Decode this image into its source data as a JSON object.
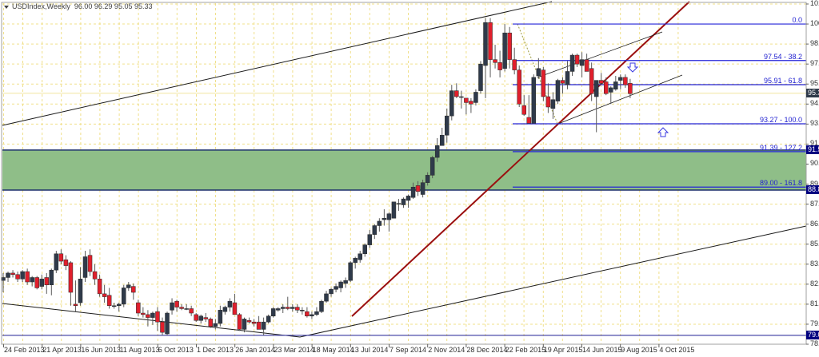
{
  "header": {
    "symbol": "USDIndex,Weekly",
    "ohlc": "96.00 96.29 95.05 95.33"
  },
  "colors": {
    "bull_candle": "#2f3a4a",
    "bear_candle": "#e01f2c",
    "grid": "#f0e08a",
    "fib_line": "#2323d8",
    "trend_red": "#9b0f0f",
    "channel": "#1a1a1a",
    "zone_fill": "#8fbe88",
    "zone_border": "#1b2f6b",
    "axis_tag": "#000080"
  },
  "chart_data": {
    "type": "candlestick",
    "title": "USDIndex,Weekly",
    "ohlc_last": {
      "open": 96.0,
      "high": 96.29,
      "low": 95.05,
      "close": 95.33
    },
    "ylim": [
      78.4,
      101.35
    ],
    "y_ticks": [
      101.35,
      100.0,
      98.65,
      97.3,
      95.95,
      94.6,
      93.25,
      91.9,
      90.55,
      89.2,
      87.85,
      86.5,
      85.15,
      83.8,
      82.45,
      81.1,
      79.75,
      78.4
    ],
    "x_ticks": [
      "24 Feb 2013",
      "21 Apr 2013",
      "16 Jun 2013",
      "11 Aug 2013",
      "6 Oct 2013",
      "1 Dec 2013",
      "26 Jan 2014",
      "23 Mar 2014",
      "18 May 2014",
      "13 Jul 2014",
      "7 Sep 2014",
      "2 Nov 2014",
      "28 Dec 2014",
      "22 Feb 2015",
      "19 Apr 2015",
      "14 Jun 2015",
      "9 Aug 2015",
      "4 Oct 2015"
    ],
    "price_tags": [
      {
        "value": "95.33",
        "kind": "current"
      },
      {
        "value": "91.50",
        "kind": "level"
      },
      {
        "value": "88.80",
        "kind": "level"
      },
      {
        "value": "79.00",
        "kind": "level"
      }
    ],
    "fibonacci": [
      {
        "label": "0.0",
        "price": 100.0
      },
      {
        "label": "97.54 - 38.2",
        "price": 97.54
      },
      {
        "label": "95.91 - 61.8",
        "price": 95.91
      },
      {
        "label": "93.27 - 100.0",
        "price": 93.27
      },
      {
        "label": "91.39 - 127.2",
        "price": 91.39
      },
      {
        "label": "89.00 - 161.8",
        "price": 89.0
      }
    ],
    "support_zone": {
      "top": 91.5,
      "bottom": 88.8
    },
    "horizontal_levels": [
      79.0
    ],
    "candles": [
      [
        82.7,
        83.2,
        81.9,
        82.9
      ],
      [
        82.9,
        83.3,
        82.6,
        83.2
      ],
      [
        83.2,
        83.4,
        82.9,
        83.1
      ],
      [
        83.1,
        83.3,
        82.6,
        82.8
      ],
      [
        82.8,
        83.4,
        82.6,
        83.3
      ],
      [
        83.3,
        83.5,
        82.4,
        82.6
      ],
      [
        82.6,
        83.0,
        82.3,
        82.9
      ],
      [
        82.9,
        83.0,
        82.1,
        82.2
      ],
      [
        82.3,
        83.1,
        82.1,
        82.8
      ],
      [
        82.9,
        83.2,
        81.8,
        82.4
      ],
      [
        82.4,
        83.5,
        81.7,
        83.4
      ],
      [
        83.4,
        84.7,
        83.2,
        84.5
      ],
      [
        84.5,
        84.8,
        83.8,
        84.0
      ],
      [
        84.1,
        84.4,
        83.4,
        83.7
      ],
      [
        83.9,
        84.0,
        81.0,
        81.9
      ],
      [
        81.1,
        82.7,
        80.6,
        81.0
      ],
      [
        81.2,
        83.6,
        81.0,
        82.8
      ],
      [
        82.9,
        84.7,
        82.6,
        84.3
      ],
      [
        84.4,
        84.8,
        83.0,
        83.3
      ],
      [
        83.3,
        83.8,
        82.4,
        82.8
      ],
      [
        82.8,
        83.1,
        81.6,
        81.8
      ],
      [
        81.8,
        82.4,
        81.2,
        81.6
      ],
      [
        81.7,
        82.2,
        80.8,
        81.0
      ],
      [
        81.0,
        81.2,
        80.8,
        81.0
      ],
      [
        81.0,
        81.2,
        80.6,
        81.1
      ],
      [
        81.1,
        82.4,
        80.9,
        82.2
      ],
      [
        82.2,
        82.6,
        82.0,
        82.4
      ],
      [
        82.3,
        82.5,
        81.4,
        81.9
      ],
      [
        81.2,
        81.4,
        80.3,
        80.5
      ],
      [
        80.5,
        80.9,
        80.2,
        80.4
      ],
      [
        80.4,
        80.7,
        79.6,
        80.2
      ],
      [
        80.2,
        80.6,
        79.7,
        80.5
      ],
      [
        80.6,
        80.9,
        79.3,
        79.9
      ],
      [
        79.9,
        80.2,
        79.0,
        79.2
      ],
      [
        79.1,
        80.6,
        79.0,
        80.5
      ],
      [
        80.7,
        81.5,
        80.4,
        81.2
      ],
      [
        81.3,
        81.4,
        80.6,
        80.9
      ],
      [
        80.9,
        81.1,
        80.7,
        80.8
      ],
      [
        80.8,
        81.1,
        80.7,
        80.8
      ],
      [
        80.8,
        81.0,
        80.3,
        80.5
      ],
      [
        80.4,
        80.5,
        79.9,
        80.0
      ],
      [
        80.0,
        80.4,
        79.8,
        80.3
      ],
      [
        80.2,
        80.5,
        79.9,
        80.1
      ],
      [
        80.1,
        80.2,
        79.5,
        79.6
      ],
      [
        79.6,
        80.1,
        79.4,
        79.8
      ],
      [
        79.8,
        81.0,
        79.6,
        80.7
      ],
      [
        80.6,
        81.0,
        80.4,
        80.9
      ],
      [
        80.9,
        81.5,
        80.6,
        81.3
      ],
      [
        81.2,
        81.8,
        80.9,
        80.4
      ],
      [
        80.4,
        80.5,
        79.3,
        79.4
      ],
      [
        79.4,
        80.2,
        79.2,
        80.1
      ],
      [
        80.0,
        80.2,
        79.8,
        79.9
      ],
      [
        79.9,
        80.1,
        79.6,
        79.8
      ],
      [
        79.9,
        80.3,
        79.6,
        79.4
      ],
      [
        79.4,
        80.2,
        79.0,
        79.9
      ],
      [
        79.9,
        80.4,
        79.8,
        80.3
      ],
      [
        80.3,
        80.9,
        80.2,
        80.8
      ],
      [
        80.7,
        80.9,
        80.6,
        80.8
      ],
      [
        80.8,
        81.1,
        80.5,
        80.9
      ],
      [
        80.9,
        81.6,
        80.7,
        80.8
      ],
      [
        80.8,
        81.1,
        80.6,
        80.9
      ],
      [
        80.9,
        81.1,
        80.5,
        80.7
      ],
      [
        80.7,
        80.9,
        80.4,
        80.7
      ],
      [
        80.6,
        80.9,
        80.2,
        80.3
      ],
      [
        80.3,
        80.6,
        80.1,
        80.4
      ],
      [
        80.4,
        80.9,
        80.3,
        80.6
      ],
      [
        80.6,
        81.4,
        80.5,
        81.3
      ],
      [
        81.3,
        82.0,
        81.2,
        81.8
      ],
      [
        81.8,
        82.2,
        81.6,
        82.1
      ],
      [
        82.1,
        82.5,
        81.9,
        82.3
      ],
      [
        82.2,
        82.7,
        81.9,
        82.6
      ],
      [
        82.5,
        82.9,
        82.2,
        82.7
      ],
      [
        82.7,
        84.0,
        82.6,
        83.9
      ],
      [
        83.9,
        84.3,
        83.5,
        84.2
      ],
      [
        84.1,
        84.7,
        83.9,
        84.5
      ],
      [
        84.5,
        85.2,
        84.3,
        85.1
      ],
      [
        85.1,
        86.1,
        84.9,
        85.8
      ],
      [
        85.8,
        86.5,
        85.5,
        86.4
      ],
      [
        86.4,
        86.9,
        86.0,
        86.7
      ],
      [
        86.8,
        87.5,
        86.4,
        86.9
      ],
      [
        86.8,
        87.3,
        86.0,
        87.2
      ],
      [
        86.9,
        87.7,
        86.9,
        88.0
      ],
      [
        87.9,
        88.2,
        87.4,
        87.9
      ],
      [
        87.8,
        88.3,
        87.6,
        88.2
      ],
      [
        88.1,
        88.5,
        87.6,
        88.4
      ],
      [
        88.3,
        89.3,
        88.2,
        89.0
      ],
      [
        89.1,
        89.4,
        88.4,
        88.7
      ],
      [
        88.5,
        89.5,
        88.3,
        89.3
      ],
      [
        89.3,
        90.0,
        89.1,
        89.8
      ],
      [
        89.8,
        91.1,
        89.6,
        91.0
      ],
      [
        91.0,
        92.3,
        90.7,
        91.8
      ],
      [
        91.8,
        93.0,
        91.8,
        92.5
      ],
      [
        92.5,
        94.3,
        92.0,
        93.8
      ],
      [
        93.8,
        95.9,
        93.5,
        95.5
      ],
      [
        95.5,
        96.0,
        95.0,
        95.1
      ],
      [
        95.1,
        95.5,
        94.3,
        95.1
      ],
      [
        95.0,
        95.0,
        93.9,
        94.7
      ],
      [
        94.8,
        95.0,
        94.0,
        94.6
      ],
      [
        94.7,
        95.6,
        94.5,
        95.4
      ],
      [
        95.5,
        97.5,
        95.3,
        97.3
      ],
      [
        97.2,
        100.4,
        95.0,
        100.1
      ],
      [
        100.1,
        100.4,
        96.4,
        97.6
      ],
      [
        97.6,
        98.6,
        97.0,
        97.4
      ],
      [
        97.4,
        98.2,
        96.4,
        96.9
      ],
      [
        97.0,
        100.0,
        96.8,
        99.4
      ],
      [
        99.4,
        99.8,
        97.0,
        97.6
      ],
      [
        97.6,
        98.4,
        96.6,
        96.9
      ],
      [
        96.9,
        97.2,
        94.4,
        94.6
      ],
      [
        94.5,
        95.2,
        93.8,
        93.9
      ],
      [
        93.7,
        95.2,
        93.3,
        93.3
      ],
      [
        93.3,
        96.6,
        93.3,
        96.4
      ],
      [
        96.5,
        97.7,
        96.3,
        97.0
      ],
      [
        96.9,
        97.1,
        94.8,
        95.1
      ],
      [
        95.1,
        96.0,
        94.0,
        94.4
      ],
      [
        94.3,
        95.4,
        93.6,
        94.9
      ],
      [
        94.8,
        96.3,
        94.6,
        96.2
      ],
      [
        96.2,
        96.4,
        95.3,
        96.0
      ],
      [
        95.9,
        97.5,
        95.6,
        96.8
      ],
      [
        96.8,
        98.0,
        96.5,
        97.9
      ],
      [
        97.9,
        98.0,
        97.1,
        97.3
      ],
      [
        97.2,
        98.1,
        96.4,
        97.6
      ],
      [
        97.6,
        98.0,
        96.8,
        96.8
      ],
      [
        97.0,
        97.4,
        94.8,
        95.3
      ],
      [
        95.1,
        96.2,
        92.7,
        96.2
      ],
      [
        96.2,
        96.7,
        95.9,
        96.0
      ],
      [
        96.1,
        96.4,
        95.2,
        95.3
      ],
      [
        95.4,
        95.8,
        94.6,
        95.7
      ],
      [
        95.6,
        96.5,
        95.5,
        96.1
      ],
      [
        96.2,
        96.6,
        95.6,
        96.4
      ],
      [
        96.4,
        96.6,
        95.7,
        95.9
      ],
      [
        96.0,
        96.3,
        95.0,
        95.3
      ]
    ]
  }
}
